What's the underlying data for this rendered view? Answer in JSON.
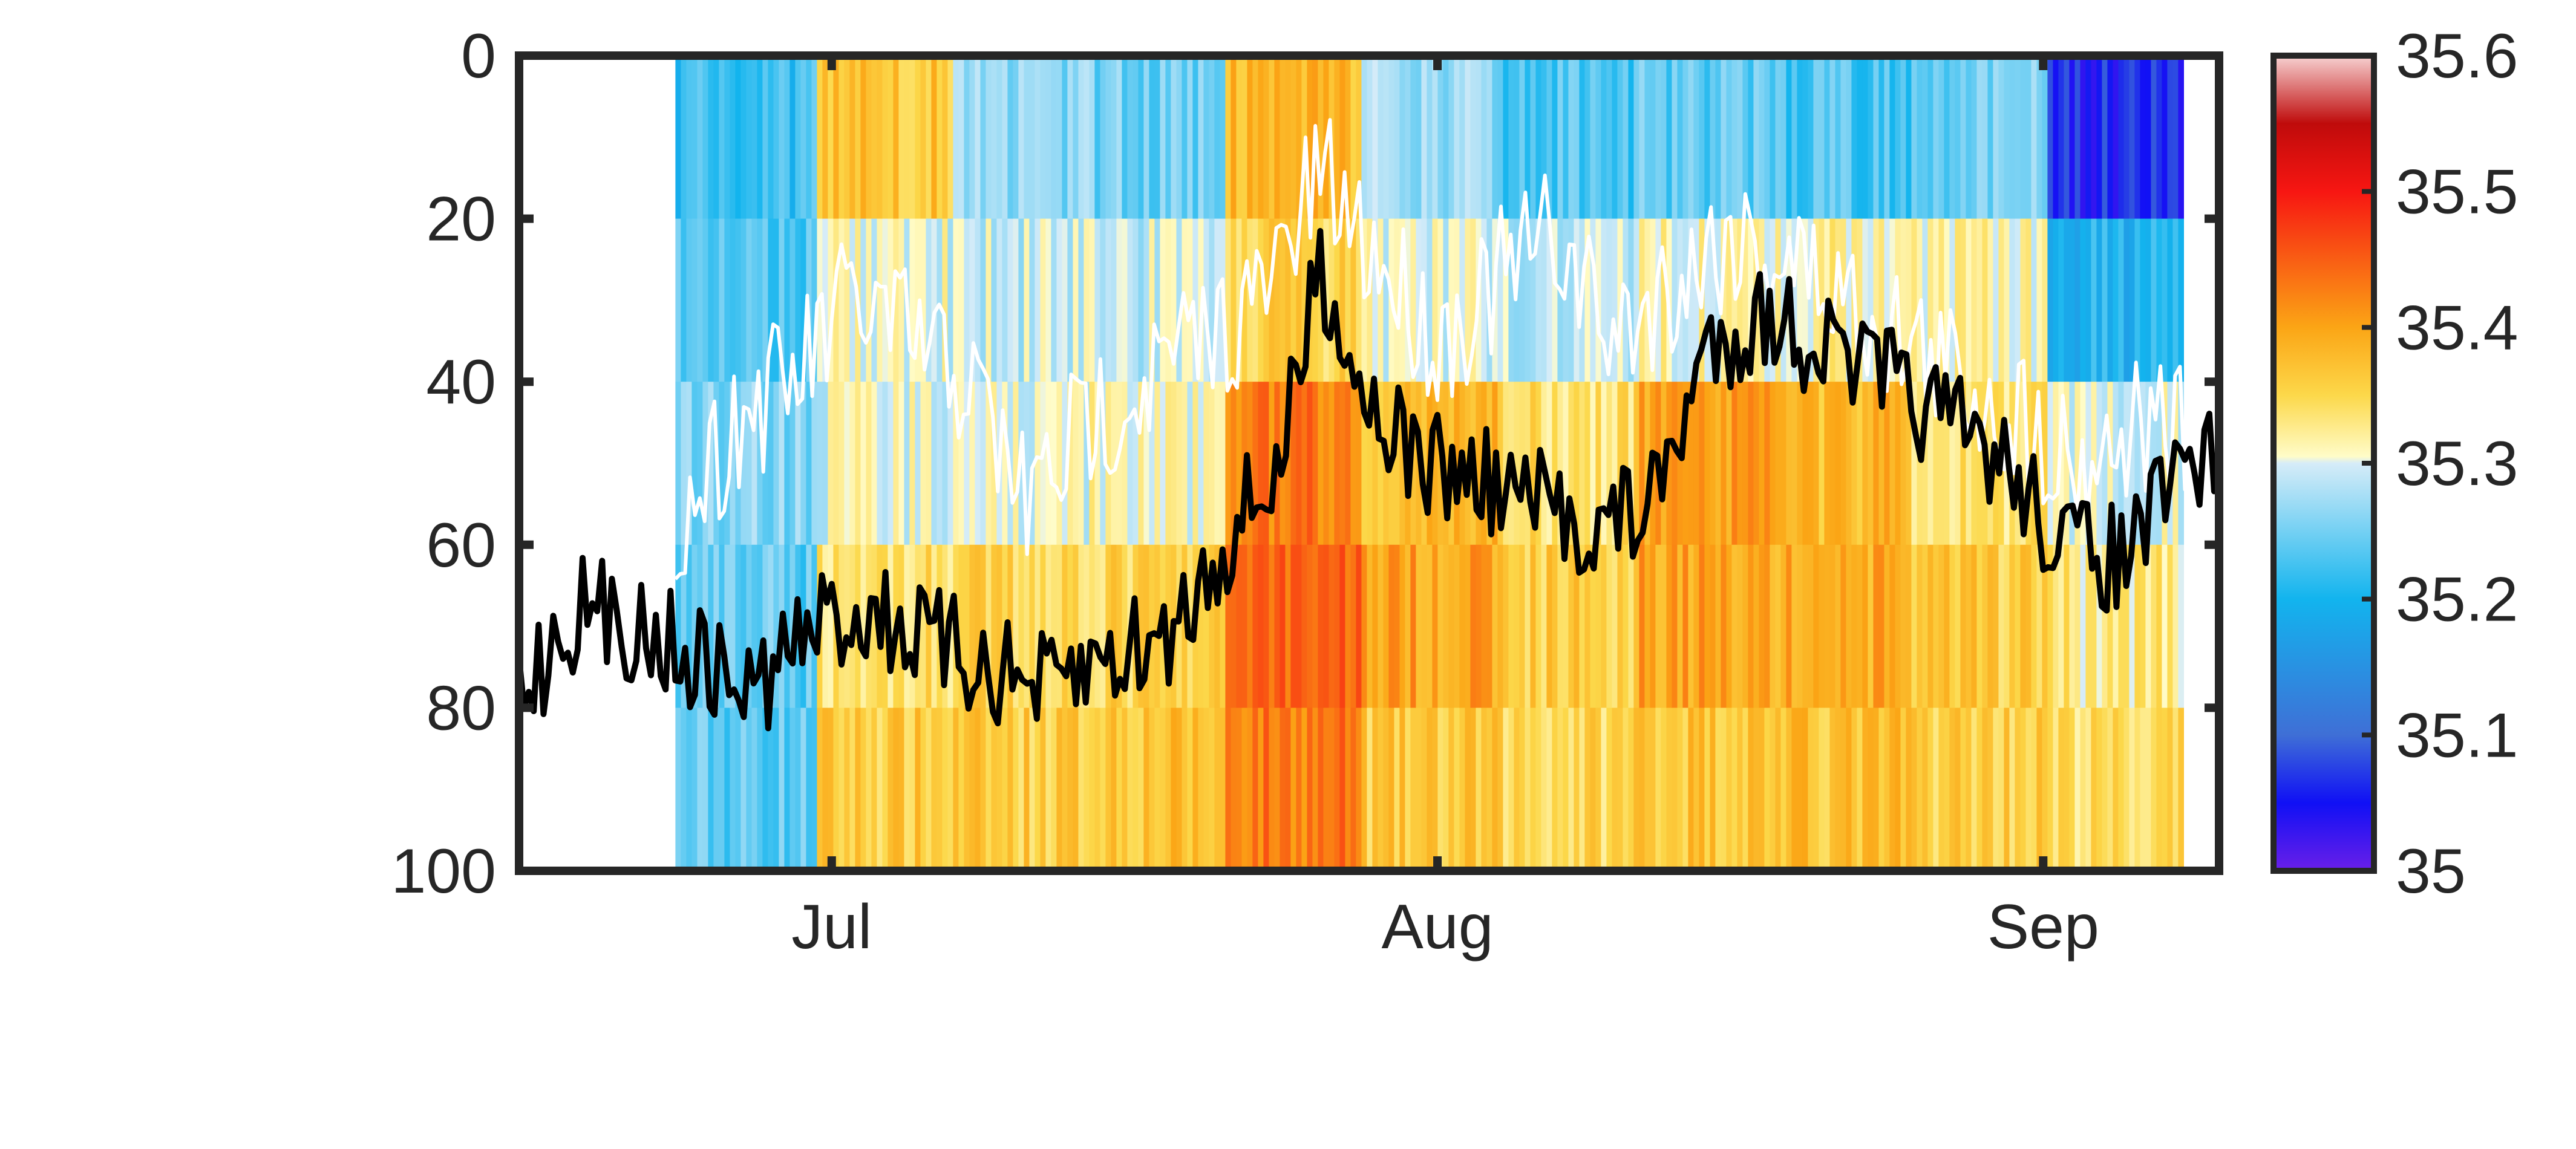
{
  "chart_data": {
    "type": "heatmap",
    "title": "",
    "xlabel": "",
    "ylabel": "",
    "x_axis": {
      "start": "2019-06-15",
      "end": "2019-09-10",
      "ticks": [
        {
          "date": "2019-07-01",
          "label": "Jul"
        },
        {
          "date": "2019-08-01",
          "label": "Aug"
        },
        {
          "date": "2019-09-01",
          "label": "Sep"
        }
      ]
    },
    "y_axis": {
      "reversed": true,
      "range": [
        0,
        100
      ],
      "ticks": [
        0,
        20,
        40,
        60,
        80,
        100
      ],
      "tick_labels": [
        "0",
        "20",
        "40",
        "60",
        "80",
        "100"
      ]
    },
    "colorbar": {
      "range": [
        35.0,
        35.6
      ],
      "ticks": [
        35.0,
        35.1,
        35.2,
        35.3,
        35.4,
        35.5,
        35.6
      ],
      "tick_labels": [
        "35",
        "35.1",
        "35.2",
        "35.3",
        "35.4",
        "35.5",
        "35.6"
      ],
      "colormap": [
        {
          "value": 35.0,
          "color": "#6a1fe8"
        },
        {
          "value": 35.05,
          "color": "#1010f5"
        },
        {
          "value": 35.1,
          "color": "#3f6fd6"
        },
        {
          "value": 35.2,
          "color": "#12b4ee"
        },
        {
          "value": 35.3,
          "color": "#d6ecf8"
        },
        {
          "value": 35.305,
          "color": "#fffcc8"
        },
        {
          "value": 35.35,
          "color": "#fcd84a"
        },
        {
          "value": 35.4,
          "color": "#fba515"
        },
        {
          "value": 35.5,
          "color": "#f71612"
        },
        {
          "value": 35.55,
          "color": "#bf0b0b"
        },
        {
          "value": 35.6,
          "color": "#f7d2d2"
        }
      ]
    },
    "heatmap_summary": {
      "depth_bands": [
        0,
        20,
        40,
        60,
        80,
        100
      ],
      "data_start": "2019-06-23",
      "data_end": "2019-09-08",
      "columns": [
        {
          "from": "2019-06-23",
          "to": "2019-06-30",
          "values": [
            35.22,
            35.23,
            35.26,
            35.24,
            35.24
          ]
        },
        {
          "from": "2019-06-30",
          "to": "2019-07-07",
          "values": [
            35.37,
            35.3,
            35.3,
            35.34,
            35.36
          ]
        },
        {
          "from": "2019-07-07",
          "to": "2019-07-14",
          "values": [
            35.26,
            35.29,
            35.3,
            35.35,
            35.36
          ]
        },
        {
          "from": "2019-07-14",
          "to": "2019-07-21",
          "values": [
            35.25,
            35.29,
            35.31,
            35.35,
            35.37
          ]
        },
        {
          "from": "2019-07-21",
          "to": "2019-07-28",
          "values": [
            35.38,
            35.35,
            35.43,
            35.45,
            35.43
          ]
        },
        {
          "from": "2019-07-28",
          "to": "2019-08-04",
          "values": [
            35.27,
            35.3,
            35.38,
            35.4,
            35.36
          ]
        },
        {
          "from": "2019-08-04",
          "to": "2019-08-11",
          "values": [
            35.23,
            35.29,
            35.34,
            35.36,
            35.35
          ]
        },
        {
          "from": "2019-08-11",
          "to": "2019-08-18",
          "values": [
            35.24,
            35.31,
            35.4,
            35.4,
            35.37
          ]
        },
        {
          "from": "2019-08-18",
          "to": "2019-08-25",
          "values": [
            35.23,
            35.32,
            35.38,
            35.39,
            35.37
          ]
        },
        {
          "from": "2019-08-25",
          "to": "2019-09-01",
          "values": [
            35.25,
            35.31,
            35.34,
            35.36,
            35.36
          ]
        },
        {
          "from": "2019-09-01",
          "to": "2019-09-08",
          "values": [
            35.06,
            35.2,
            35.3,
            35.33,
            35.34
          ]
        }
      ]
    },
    "series": [
      {
        "color": "#ffffff",
        "points": [
          [
            "2019-06-23",
            58
          ],
          [
            "2019-06-26",
            45
          ],
          [
            "2019-06-29",
            40
          ],
          [
            "2019-07-02",
            30
          ],
          [
            "2019-07-05",
            35
          ],
          [
            "2019-07-08",
            40
          ],
          [
            "2019-07-11",
            55
          ],
          [
            "2019-07-14",
            45
          ],
          [
            "2019-07-17",
            40
          ],
          [
            "2019-07-20",
            35
          ],
          [
            "2019-07-23",
            30
          ],
          [
            "2019-07-26",
            15
          ],
          [
            "2019-07-29",
            25
          ],
          [
            "2019-08-01",
            35
          ],
          [
            "2019-08-04",
            28
          ],
          [
            "2019-08-07",
            22
          ],
          [
            "2019-08-10",
            35
          ],
          [
            "2019-08-13",
            28
          ],
          [
            "2019-08-16",
            22
          ],
          [
            "2019-08-19",
            25
          ],
          [
            "2019-08-22",
            30
          ],
          [
            "2019-08-25",
            35
          ],
          [
            "2019-08-28",
            40
          ],
          [
            "2019-08-31",
            45
          ],
          [
            "2019-09-03",
            50
          ],
          [
            "2019-09-06",
            45
          ],
          [
            "2019-09-10",
            48
          ]
        ]
      },
      {
        "color": "#000000",
        "points": [
          [
            "2019-06-15",
            78
          ],
          [
            "2019-06-18",
            68
          ],
          [
            "2019-06-21",
            70
          ],
          [
            "2019-06-24",
            74
          ],
          [
            "2019-06-27",
            78
          ],
          [
            "2019-06-30",
            70
          ],
          [
            "2019-07-03",
            68
          ],
          [
            "2019-07-06",
            72
          ],
          [
            "2019-07-09",
            75
          ],
          [
            "2019-07-12",
            78
          ],
          [
            "2019-07-15",
            74
          ],
          [
            "2019-07-18",
            72
          ],
          [
            "2019-07-21",
            60
          ],
          [
            "2019-07-24",
            50
          ],
          [
            "2019-07-26",
            25
          ],
          [
            "2019-07-28",
            40
          ],
          [
            "2019-07-31",
            50
          ],
          [
            "2019-08-03",
            52
          ],
          [
            "2019-08-06",
            55
          ],
          [
            "2019-08-09",
            58
          ],
          [
            "2019-08-12",
            55
          ],
          [
            "2019-08-15",
            35
          ],
          [
            "2019-08-18",
            32
          ],
          [
            "2019-08-21",
            36
          ],
          [
            "2019-08-24",
            40
          ],
          [
            "2019-08-27",
            45
          ],
          [
            "2019-08-30",
            50
          ],
          [
            "2019-09-02",
            60
          ],
          [
            "2019-09-05",
            62
          ],
          [
            "2019-09-08",
            52
          ],
          [
            "2019-09-10",
            48
          ]
        ]
      }
    ],
    "grid": false,
    "legend": "none"
  }
}
